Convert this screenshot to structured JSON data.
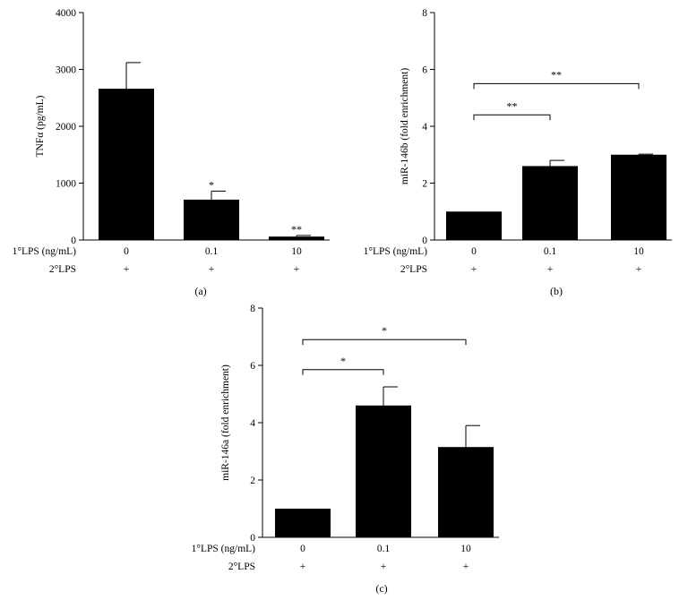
{
  "chart_data": [
    {
      "panel": "(a)",
      "type": "bar",
      "categories": [
        "0",
        "0.1",
        "10"
      ],
      "values": [
        2660,
        710,
        60
      ],
      "errors": [
        460,
        150,
        20
      ],
      "ylabel": "TNFα (pg/mL)",
      "ylim": [
        0,
        4000
      ],
      "yticks": [
        "0",
        "1000",
        "2000",
        "3000",
        "4000"
      ],
      "row1_label": "1°LPS (ng/mL)",
      "row2_label": "2°LPS",
      "row2_values": [
        "+",
        "+",
        "+"
      ],
      "bar_annotations": [
        "",
        "*",
        "**"
      ],
      "brackets": []
    },
    {
      "panel": "(b)",
      "type": "bar",
      "categories": [
        "0",
        "0.1",
        "10"
      ],
      "values": [
        1.0,
        2.6,
        3.0
      ],
      "errors": [
        0,
        0.2,
        0.02
      ],
      "ylabel": "miR-146b (fold enrichment)",
      "ylim": [
        0,
        8
      ],
      "yticks": [
        "0",
        "2",
        "4",
        "6",
        "8"
      ],
      "row1_label": "1°LPS (ng/mL)",
      "row2_label": "2°LPS",
      "row2_values": [
        "+",
        "+",
        "+"
      ],
      "bar_annotations": [
        "",
        "",
        ""
      ],
      "brackets": [
        {
          "from": 0,
          "to": 1,
          "y": 4.4,
          "label": "**"
        },
        {
          "from": 0,
          "to": 2,
          "y": 5.5,
          "label": "**"
        }
      ]
    },
    {
      "panel": "(c)",
      "type": "bar",
      "categories": [
        "0",
        "0.1",
        "10"
      ],
      "values": [
        1.0,
        4.6,
        3.15
      ],
      "errors": [
        0,
        0.65,
        0.75
      ],
      "ylabel": "miR-146a (fold enrichment)",
      "ylim": [
        0,
        8
      ],
      "yticks": [
        "0",
        "2",
        "4",
        "6",
        "8"
      ],
      "row1_label": "1°LPS (ng/mL)",
      "row2_label": "2°LPS",
      "row2_values": [
        "+",
        "+",
        "+"
      ],
      "bar_annotations": [
        "",
        "",
        ""
      ],
      "brackets": [
        {
          "from": 0,
          "to": 1,
          "y": 5.85,
          "label": "*"
        },
        {
          "from": 0,
          "to": 2,
          "y": 6.9,
          "label": "*"
        }
      ]
    }
  ]
}
